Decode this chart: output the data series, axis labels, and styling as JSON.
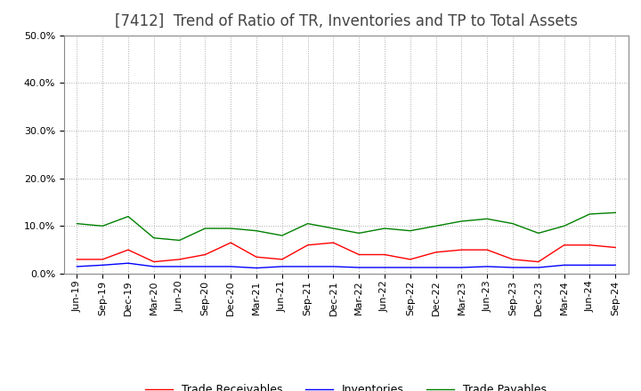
{
  "title": "[7412]  Trend of Ratio of TR, Inventories and TP to Total Assets",
  "x_labels": [
    "Jun-19",
    "Sep-19",
    "Dec-19",
    "Mar-20",
    "Jun-20",
    "Sep-20",
    "Dec-20",
    "Mar-21",
    "Jun-21",
    "Sep-21",
    "Dec-21",
    "Mar-22",
    "Jun-22",
    "Sep-22",
    "Dec-22",
    "Mar-23",
    "Jun-23",
    "Sep-23",
    "Dec-23",
    "Mar-24",
    "Jun-24",
    "Sep-24"
  ],
  "trade_receivables": [
    0.03,
    0.03,
    0.05,
    0.025,
    0.03,
    0.04,
    0.065,
    0.035,
    0.03,
    0.06,
    0.065,
    0.04,
    0.04,
    0.03,
    0.045,
    0.05,
    0.05,
    0.03,
    0.025,
    0.06,
    0.06,
    0.055
  ],
  "inventories": [
    0.015,
    0.018,
    0.022,
    0.015,
    0.015,
    0.015,
    0.015,
    0.012,
    0.015,
    0.015,
    0.015,
    0.013,
    0.013,
    0.013,
    0.013,
    0.013,
    0.015,
    0.013,
    0.013,
    0.018,
    0.018,
    0.018
  ],
  "trade_payables": [
    0.105,
    0.1,
    0.12,
    0.075,
    0.07,
    0.095,
    0.095,
    0.09,
    0.08,
    0.105,
    0.095,
    0.085,
    0.095,
    0.09,
    0.1,
    0.11,
    0.115,
    0.105,
    0.085,
    0.1,
    0.125,
    0.128
  ],
  "tr_color": "#ff0000",
  "inv_color": "#0000ff",
  "tp_color": "#008000",
  "ylim": [
    0.0,
    0.5
  ],
  "yticks": [
    0.0,
    0.1,
    0.2,
    0.3,
    0.4,
    0.5
  ],
  "background_color": "#ffffff",
  "grid_color": "#aaaaaa",
  "title_fontsize": 12,
  "title_color": "#444444",
  "legend_fontsize": 9,
  "tick_fontsize": 8
}
